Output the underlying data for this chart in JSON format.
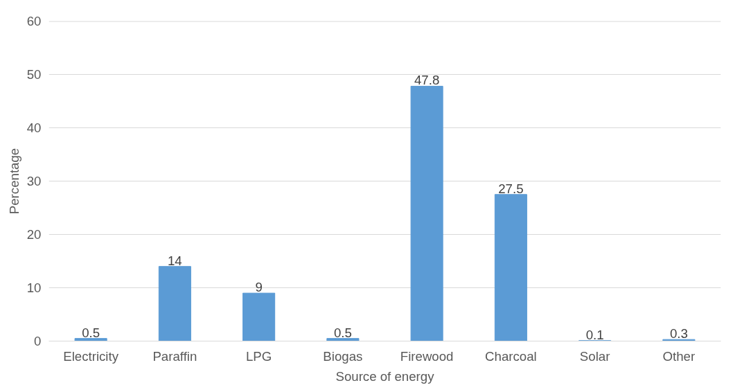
{
  "chart_data": {
    "type": "bar",
    "xlabel": "Source of energy",
    "ylabel": "Percentage",
    "categories": [
      "Electricity",
      "Paraffin",
      "LPG",
      "Biogas",
      "Firewood",
      "Charcoal",
      "Solar",
      "Other"
    ],
    "values": [
      0.5,
      14,
      9,
      0.5,
      47.8,
      27.5,
      0.1,
      0.3
    ],
    "color": "#5b9bd5",
    "ylim": [
      0,
      60
    ],
    "yticks": [
      0,
      10,
      20,
      30,
      40,
      50,
      60
    ],
    "grid": "y",
    "data_labels": true
  }
}
